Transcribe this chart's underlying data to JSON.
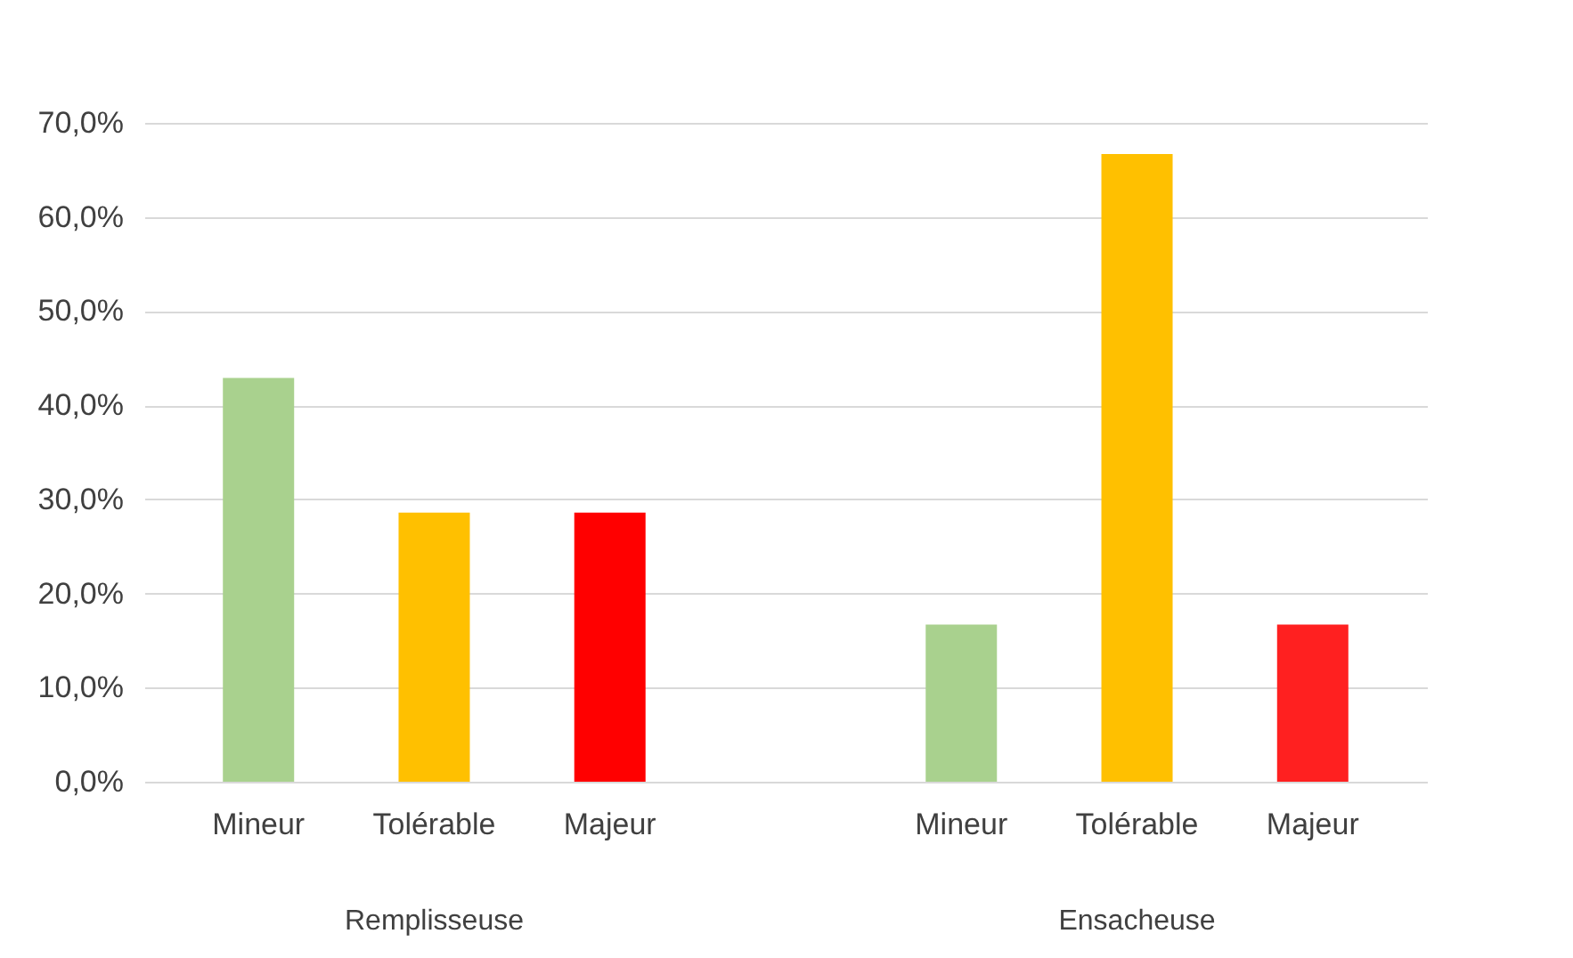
{
  "chart_data": {
    "type": "bar",
    "categories": [
      "Mineur",
      "Tolérable",
      "Majeur",
      "Mineur",
      "Tolérable",
      "Majeur"
    ],
    "values": [
      42.9,
      28.6,
      28.6,
      16.7,
      66.7,
      16.7
    ],
    "colors": [
      "#a9d18e",
      "#ffc000",
      "#ff0000",
      "#a9d18e",
      "#ffc000",
      "#ff2020"
    ],
    "ylim": [
      0,
      70
    ],
    "yticks": [
      {
        "value": 0,
        "label": "0,0%"
      },
      {
        "value": 10,
        "label": "10,0%"
      },
      {
        "value": 20,
        "label": "20,0%"
      },
      {
        "value": 30,
        "label": "30,0%"
      },
      {
        "value": 40,
        "label": "40,0%"
      },
      {
        "value": 50,
        "label": "50,0%"
      },
      {
        "value": 60,
        "label": "60,0%"
      },
      {
        "value": 70,
        "label": "70,0%"
      }
    ],
    "grid": "y",
    "annotations": [
      "Remplisseuse",
      "Ensacheuse"
    ]
  }
}
